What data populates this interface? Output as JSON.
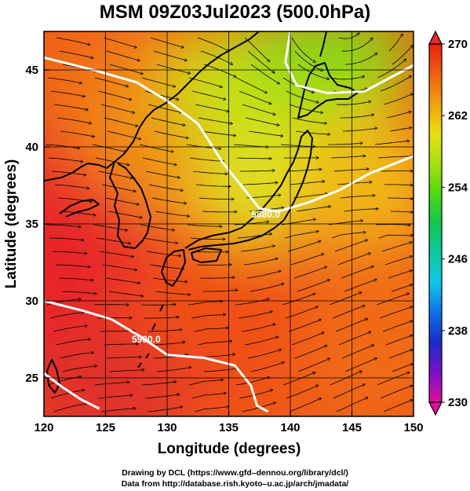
{
  "title": "MSM 09Z03Jul2023 (500.0hPa)",
  "x_axis": {
    "title": "Longitude (degrees)",
    "range": [
      120,
      150
    ],
    "ticks": [
      120,
      125,
      130,
      135,
      140,
      145,
      150
    ],
    "tick_labels": [
      "120",
      "125",
      "130",
      "135",
      "140",
      "145",
      "150"
    ]
  },
  "y_axis": {
    "title": "Latitude  (degrees)",
    "range": [
      22.5,
      47.5
    ],
    "ticks": [
      25,
      30,
      35,
      40,
      45
    ],
    "tick_labels": [
      "25",
      "30",
      "35",
      "40",
      "45"
    ]
  },
  "colorbar": {
    "range": [
      230,
      270
    ],
    "labels": [
      "270",
      "262",
      "254",
      "246",
      "238",
      "230"
    ],
    "label_values": [
      270,
      262,
      254,
      246,
      238,
      230
    ],
    "colors": [
      "#e0109a",
      "#7a10c8",
      "#1b2cc8",
      "#1070e8",
      "#10c8e8",
      "#10c8a0",
      "#10c850",
      "#50d810",
      "#a8e010",
      "#e8e010",
      "#f0a010",
      "#f06010",
      "#e82010"
    ]
  },
  "contours": [
    {
      "label": "5880",
      "points": [
        [
          120,
          45.8
        ],
        [
          124,
          45.0
        ],
        [
          127.5,
          44.2
        ],
        [
          130,
          43.0
        ],
        [
          132.5,
          41.5
        ],
        [
          134.5,
          39.0
        ],
        [
          136.5,
          37.0
        ],
        [
          137.5,
          36.0
        ],
        [
          139,
          35.8
        ],
        [
          141.5,
          36.4
        ],
        [
          144,
          37.2
        ],
        [
          146.5,
          38.3
        ],
        [
          150,
          39.4
        ]
      ]
    },
    {
      "label": "",
      "points": [
        [
          140,
          47.5
        ],
        [
          139.6,
          45.5
        ],
        [
          140.5,
          44.0
        ],
        [
          143,
          43.5
        ],
        [
          146,
          43.6
        ],
        [
          150,
          45.3
        ]
      ]
    },
    {
      "label": "5900",
      "points": [
        [
          120,
          30.0
        ],
        [
          123,
          29.4
        ],
        [
          125.5,
          28.8
        ],
        [
          128,
          27.6
        ],
        [
          130,
          26.5
        ],
        [
          133,
          26.3
        ],
        [
          135.5,
          25.8
        ],
        [
          136.8,
          24.5
        ],
        [
          137.3,
          23.2
        ],
        [
          138.2,
          22.8
        ]
      ]
    },
    {
      "label": "",
      "points": [
        [
          120,
          25.3
        ],
        [
          121.5,
          24.4
        ],
        [
          123,
          23.6
        ],
        [
          124.5,
          23.0
        ]
      ]
    }
  ],
  "contour_labels": [
    {
      "text": "5880.0",
      "lon": 138.0,
      "lat": 35.6
    },
    {
      "text": "5900.0",
      "lon": 128.3,
      "lat": 27.5
    }
  ],
  "credits": [
    "Drawing by DCL (https://www.gfd–dennou.org/library/dcl/)",
    "Data from http://database.rish.kyoto–u.ac.jp/arch/jmadata/"
  ]
}
